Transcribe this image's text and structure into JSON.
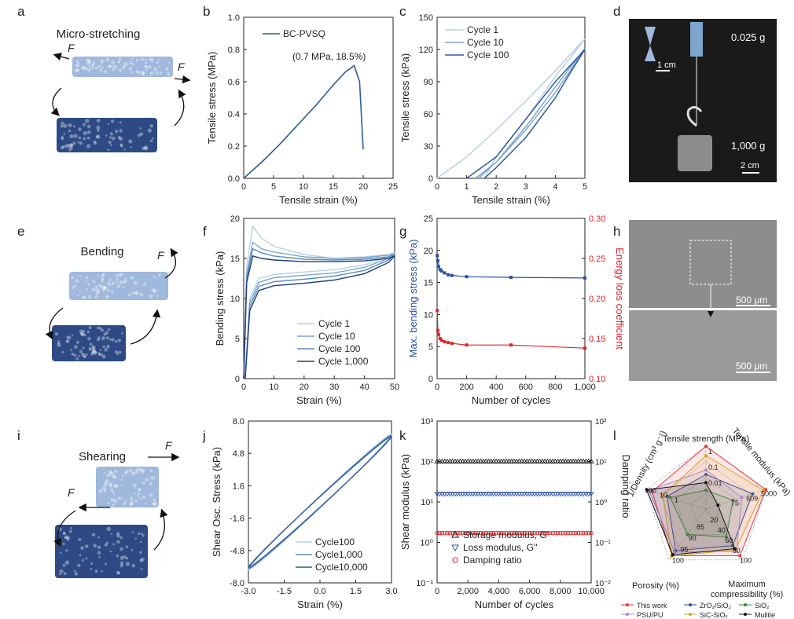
{
  "panel_letters": [
    "a",
    "b",
    "c",
    "d",
    "e",
    "f",
    "g",
    "h",
    "i",
    "j",
    "k",
    "l"
  ],
  "schematics": {
    "a": {
      "title": "Micro-stretching",
      "force": "F"
    },
    "e": {
      "title": "Bending",
      "force": "F"
    },
    "i": {
      "title": "Shearing",
      "force": "F"
    }
  },
  "photo_d": {
    "mass_small": "0.025 g",
    "mass_large": "1,000 g",
    "scale_small": "1 cm",
    "scale_large": "2 cm"
  },
  "sem_h": {
    "scale_top": "500 μm",
    "scale_bottom": "500 μm"
  },
  "colors": {
    "light": "#b8cfe4",
    "mid": "#7ea6cc",
    "dark": "#2f5a9a",
    "darker": "#1f3f7a",
    "red": "#e0232a",
    "black": "#111111"
  },
  "chart_data": [
    {
      "panel": "b",
      "type": "line",
      "xlabel": "Tensile strain (%)",
      "ylabel": "Tensile stress (MPa)",
      "xlim": [
        0,
        25
      ],
      "ylim": [
        0,
        1.0
      ],
      "xticks": [
        "0",
        "5",
        "10",
        "15",
        "20",
        "25"
      ],
      "yticks": [
        "0.0",
        "0.2",
        "0.4",
        "0.6",
        "0.8",
        "1.0"
      ],
      "series": [
        {
          "name": "BC-PVSQ",
          "x": [
            0,
            3,
            6,
            9,
            12,
            15,
            17,
            18.5,
            19.4,
            20
          ],
          "y": [
            0,
            0.1,
            0.21,
            0.33,
            0.45,
            0.58,
            0.66,
            0.7,
            0.6,
            0.18
          ]
        }
      ],
      "annotation": "(0.7 MPa, 18.5%)"
    },
    {
      "panel": "c",
      "type": "line",
      "xlabel": "Tensile strain (%)",
      "ylabel": "Tensile stress (kPa)",
      "xlim": [
        0,
        5
      ],
      "ylim": [
        0,
        150
      ],
      "xticks": [
        "0",
        "1",
        "2",
        "3",
        "4",
        "5"
      ],
      "yticks": [
        "0",
        "30",
        "60",
        "90",
        "120",
        "150"
      ],
      "series": [
        {
          "name": "Cycle 1",
          "x": [
            0,
            1,
            2,
            3,
            4,
            5,
            4.5,
            4,
            3,
            2,
            1.6
          ],
          "y": [
            0,
            20,
            45,
            72,
            100,
            130,
            112,
            95,
            55,
            20,
            0
          ]
        },
        {
          "name": "Cycle 10",
          "x": [
            1.4,
            2,
            3,
            4,
            5,
            4.5,
            4,
            3,
            2,
            1.3
          ],
          "y": [
            0,
            15,
            48,
            85,
            121,
            100,
            80,
            45,
            15,
            0
          ]
        },
        {
          "name": "Cycle 100",
          "x": [
            1,
            2,
            3,
            4,
            5,
            4.5,
            4,
            3,
            2,
            1.6
          ],
          "y": [
            0,
            20,
            55,
            90,
            120,
            98,
            75,
            38,
            10,
            0
          ]
        }
      ]
    },
    {
      "panel": "f",
      "type": "line",
      "xlabel": "Strain (%)",
      "ylabel": "Bending stress (kPa)",
      "xlim": [
        0,
        50
      ],
      "ylim": [
        0,
        20
      ],
      "xticks": [
        "0",
        "10",
        "20",
        "30",
        "40",
        "50"
      ],
      "yticks": [
        "0",
        "5",
        "10",
        "15",
        "20"
      ],
      "series": [
        {
          "name": "Cycle 1",
          "x": [
            0,
            1,
            3,
            6,
            10,
            20,
            30,
            40,
            48,
            50,
            48,
            40,
            30,
            20,
            10,
            5,
            2,
            0.5
          ],
          "y": [
            0,
            14,
            19,
            17.5,
            16.5,
            15.5,
            15,
            15.2,
            15.5,
            15.7,
            15.2,
            14.2,
            13.6,
            13.3,
            13,
            12.5,
            10,
            0
          ]
        },
        {
          "name": "Cycle 10",
          "x": [
            0,
            1,
            3,
            6,
            10,
            20,
            30,
            40,
            48,
            50,
            48,
            40,
            30,
            20,
            10,
            5,
            2,
            0.5
          ],
          "y": [
            0,
            13,
            17,
            16.2,
            15.8,
            15.2,
            15,
            15.1,
            15.4,
            15.6,
            15,
            13.9,
            13.2,
            12.9,
            12.6,
            12,
            9.5,
            0
          ]
        },
        {
          "name": "Cycle 100",
          "x": [
            0,
            1,
            3,
            6,
            10,
            20,
            30,
            40,
            48,
            50,
            48,
            40,
            30,
            20,
            10,
            5,
            2,
            0.5
          ],
          "y": [
            0,
            12.5,
            16.2,
            15.7,
            15.3,
            14.9,
            14.8,
            14.9,
            15.2,
            15.5,
            14.8,
            13.5,
            12.8,
            12.4,
            12.1,
            11.5,
            9,
            0
          ]
        },
        {
          "name": "Cycle 1,000",
          "x": [
            0,
            1,
            3,
            6,
            10,
            20,
            30,
            40,
            48,
            50,
            48,
            40,
            30,
            20,
            10,
            5,
            2,
            0.5
          ],
          "y": [
            0,
            12,
            15.3,
            15,
            14.8,
            14.6,
            14.6,
            14.7,
            15,
            15.3,
            14.5,
            13.1,
            12.3,
            11.9,
            11.6,
            11,
            8.5,
            0
          ]
        }
      ]
    },
    {
      "panel": "g",
      "type": "line",
      "xlabel": "Number of cycles",
      "ylabel": "Max. bending stress (kPa)",
      "y2label": "Energy loss coefficient",
      "xlim": [
        0,
        1000
      ],
      "ylim": [
        0,
        25
      ],
      "y2lim": [
        0.1,
        0.3
      ],
      "xticks": [
        "0",
        "200",
        "400",
        "600",
        "800",
        "1,000"
      ],
      "yticks": [
        "0",
        "5",
        "10",
        "15",
        "20",
        "25"
      ],
      "y2ticks": [
        "0.10",
        "0.15",
        "0.20",
        "0.25",
        "0.30"
      ],
      "series": [
        {
          "name": "Max. bending stress",
          "axis": "left",
          "x": [
            1,
            5,
            10,
            20,
            30,
            50,
            75,
            100,
            200,
            500,
            1000
          ],
          "y": [
            19.2,
            18.4,
            17.5,
            17,
            16.8,
            16.5,
            16.2,
            16.1,
            15.9,
            15.8,
            15.7
          ]
        },
        {
          "name": "Energy loss coefficient",
          "axis": "right",
          "x": [
            1,
            5,
            10,
            20,
            30,
            50,
            75,
            100,
            200,
            500,
            1000
          ],
          "y": [
            0.185,
            0.16,
            0.155,
            0.15,
            0.148,
            0.146,
            0.145,
            0.144,
            0.142,
            0.142,
            0.138
          ]
        }
      ]
    },
    {
      "panel": "j",
      "type": "line",
      "xlabel": "Strain (%)",
      "ylabel": "Shear Osc. Stress (kPa)",
      "xlim": [
        -3.0,
        3.0
      ],
      "ylim": [
        -8.0,
        8.0
      ],
      "xticks": [
        "-3.0",
        "-1.5",
        "0.0",
        "1.5",
        "3.0"
      ],
      "yticks": [
        "-8.0",
        "-4.8",
        "-1.6",
        "1.6",
        "4.8",
        "8.0"
      ],
      "series": [
        {
          "name": "Cycle100",
          "amplitude": 6.7,
          "phase": 0.09
        },
        {
          "name": "Cycle1,000",
          "amplitude": 6.6,
          "phase": 0.085
        },
        {
          "name": "Cycle10,000",
          "amplitude": 6.5,
          "phase": 0.08
        }
      ]
    },
    {
      "panel": "k",
      "type": "scatter",
      "xlabel": "Number of cycles",
      "ylabel": "Shear modulus (kPa)",
      "y2label": "Damping ratio",
      "xlim": [
        0,
        10000
      ],
      "ylog": true,
      "ylim": [
        0.1,
        1000
      ],
      "y2lim": [
        0.01,
        100
      ],
      "xticks": [
        "0",
        "2,000",
        "4,000",
        "6,000",
        "8,000",
        "10,000"
      ],
      "series": [
        {
          "name": "Storage modulus, G'",
          "axis": "left",
          "marker": "triangle-up",
          "value": 100
        },
        {
          "name": "Loss modulus, G''",
          "axis": "left",
          "marker": "triangle-down",
          "value": 16
        },
        {
          "name": "Damping ratio",
          "axis": "right",
          "marker": "circle",
          "value": 0.17
        }
      ]
    },
    {
      "panel": "l",
      "type": "radar",
      "axes": [
        "Tensile strength (MPa)",
        "Tensile modulus (kPa)",
        "Maximum compressibility (%)",
        "Porosity (%)",
        "1/Density (cm³ g⁻¹)"
      ],
      "series": [
        {
          "name": "This work",
          "values": [
            1.0,
            1.0,
            0.92,
            0.92,
            0.9
          ]
        },
        {
          "name": "ZrO₂/SiO₂",
          "values": [
            0.55,
            0.78,
            0.72,
            0.82,
            0.65
          ]
        },
        {
          "name": "SiO₂",
          "values": [
            0.3,
            0.45,
            0.55,
            0.5,
            0.6
          ]
        },
        {
          "name": "PSU/PU",
          "values": [
            0.62,
            0.6,
            0.83,
            0.85,
            0.95
          ]
        },
        {
          "name": "SiC-SiOₓ",
          "values": [
            0.85,
            0.96,
            0.8,
            0.93,
            0.72
          ]
        },
        {
          "name": "Mullite",
          "values": [
            0.42,
            0.2,
            0.78,
            0.9,
            0.99
          ]
        }
      ]
    }
  ],
  "radar_labels": {
    "top": "Tensile strength (MPa)",
    "right": "Tensile modulus (kPa)",
    "left": "1/Density (cm³ g⁻¹)",
    "bottom_left": "Porosity (%)",
    "bottom_right_1": "Maximum",
    "bottom_right_2": "compressibility (%)",
    "ticks_ts": [
      "1",
      "0.1",
      "0.01"
    ],
    "ticks_tm": [
      "5000",
      "609",
      "75"
    ],
    "ticks_dens": [
      "100",
      "10",
      "1"
    ],
    "ticks_por": [
      "100",
      "95",
      "90",
      "85"
    ],
    "ticks_comp": [
      "100",
      "80",
      "60",
      "40",
      "20"
    ]
  },
  "radar_legend": [
    "This work",
    "ZrO₂/SiO₂",
    "SiO₂",
    "PSU/PU",
    "SiC-SiOₓ",
    "Mullite"
  ],
  "radar_colors": [
    "#e8343a",
    "#2b4fa6",
    "#2e8b3c",
    "#a78ad6",
    "#d8a22a",
    "#111111"
  ],
  "y2label_k": "Damping ratio",
  "k_yticks_left": [
    "10⁻¹",
    "10⁰",
    "10¹",
    "10²",
    "10³"
  ],
  "k_yticks_right": [
    "10⁻²",
    "10⁻¹",
    "10⁰",
    "10¹",
    "10²"
  ]
}
